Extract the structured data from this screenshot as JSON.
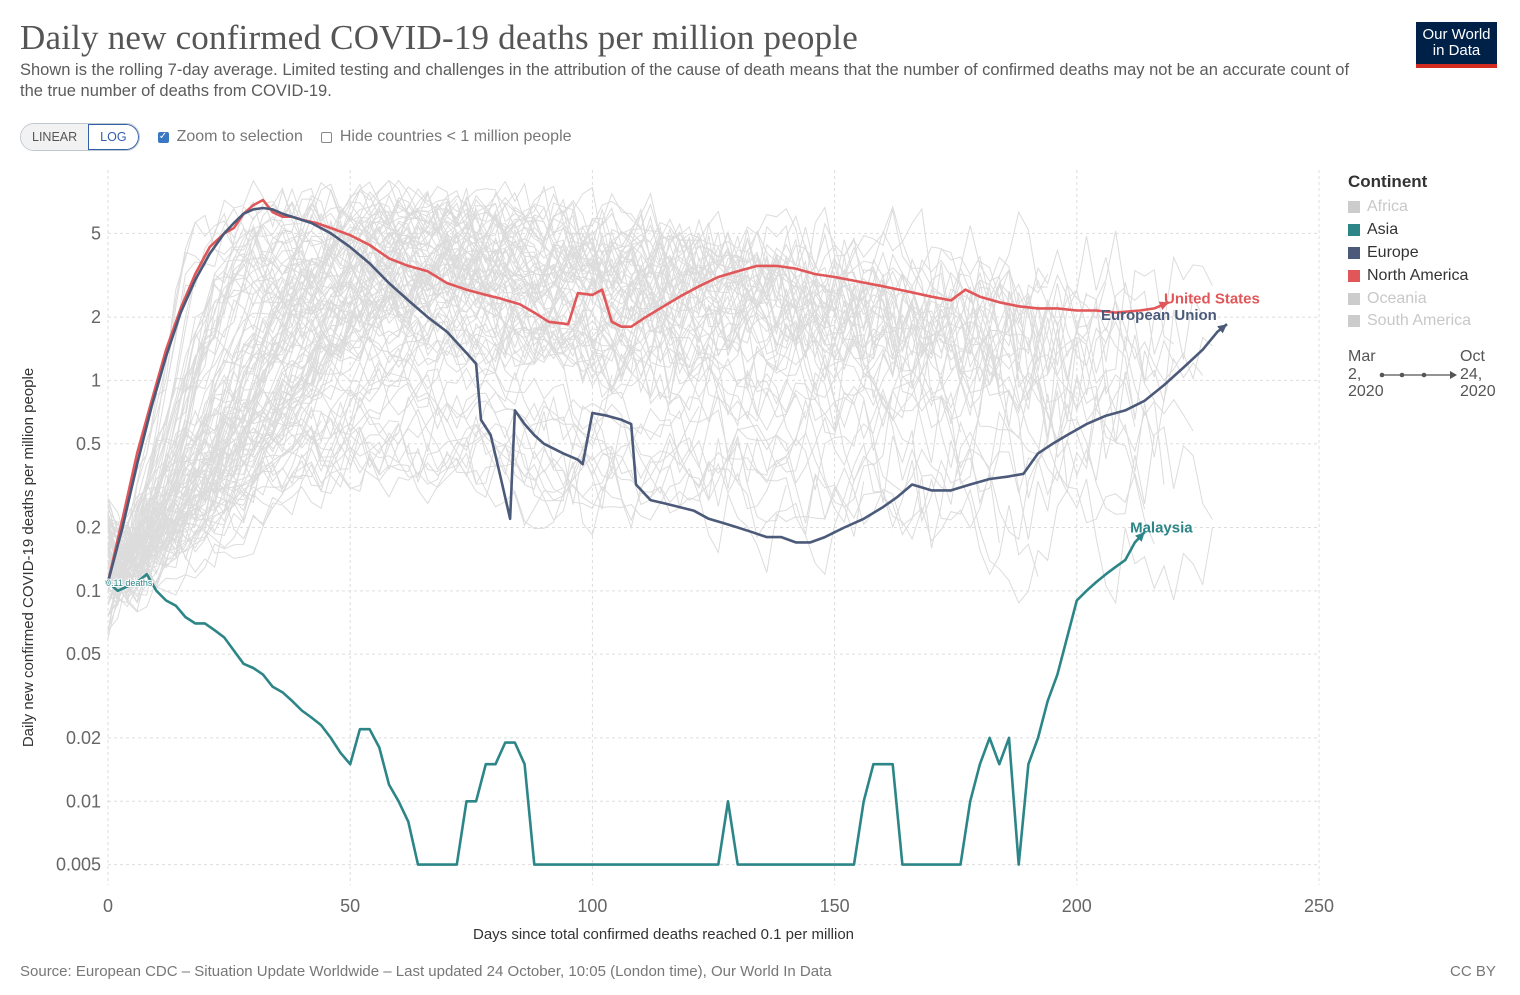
{
  "header": {
    "title": "Daily new confirmed COVID-19 deaths per million people",
    "subtitle": "Shown is the rolling 7-day average. Limited testing and challenges in the attribution of the cause of death means that the number of confirmed deaths may not be an accurate count of the true number of deaths from COVID-19.",
    "logo_line1": "Our World",
    "logo_line2": "in Data"
  },
  "controls": {
    "linear_label": "LINEAR",
    "log_label": "LOG",
    "active_scale": "log",
    "zoom_label": "Zoom to selection",
    "zoom_checked": true,
    "hide_label": "Hide countries < 1 million people",
    "hide_checked": false
  },
  "legend": {
    "title": "Continent",
    "items": [
      {
        "label": "Africa",
        "color": "#cccccc",
        "active": false
      },
      {
        "label": "Asia",
        "color": "#2c8587",
        "active": true
      },
      {
        "label": "Europe",
        "color": "#4c5a7a",
        "active": true
      },
      {
        "label": "North America",
        "color": "#e15759",
        "active": true
      },
      {
        "label": "Oceania",
        "color": "#cccccc",
        "active": false
      },
      {
        "label": "South America",
        "color": "#cccccc",
        "active": false
      }
    ]
  },
  "timeline": {
    "start_month": "Mar",
    "start_day": "2,",
    "start_year": "2020",
    "end_month": "Oct",
    "end_day": "24,",
    "end_year": "2020"
  },
  "footer": {
    "source": "Source: European CDC – Situation Update Worldwide – Last updated 24 October, 10:05 (London time), Our World In Data",
    "license": "CC BY"
  },
  "chart_data": {
    "type": "line",
    "title": "Daily new confirmed COVID-19 deaths per million people",
    "xlabel": "Days since total confirmed deaths reached 0.1 per million",
    "ylabel": "Daily new confirmed COVID-19 deaths per million people",
    "yscale": "log",
    "xlim": [
      0,
      250
    ],
    "ylim": [
      0.004,
      10
    ],
    "x_ticks": [
      0,
      50,
      100,
      150,
      200,
      250
    ],
    "y_ticks": [
      0.005,
      0.01,
      0.02,
      0.05,
      0.1,
      0.2,
      0.5,
      1,
      2,
      5
    ],
    "y_tick_labels": [
      "0.005",
      "0.01",
      "0.02",
      "0.05",
      "0.1",
      "0.2",
      "0.5",
      "1",
      "2",
      "5"
    ],
    "start_annotation": "0.11 deaths",
    "background_series_color": "#dcdcdc",
    "series": [
      {
        "name": "United States",
        "color": "#e15759",
        "label_color": "#e15759",
        "points": [
          [
            0,
            0.11
          ],
          [
            3,
            0.22
          ],
          [
            6,
            0.45
          ],
          [
            9,
            0.8
          ],
          [
            12,
            1.4
          ],
          [
            15,
            2.2
          ],
          [
            18,
            3.2
          ],
          [
            21,
            4.3
          ],
          [
            24,
            5.0
          ],
          [
            26,
            5.3
          ],
          [
            28,
            6.2
          ],
          [
            30,
            6.8
          ],
          [
            32,
            7.2
          ],
          [
            34,
            6.3
          ],
          [
            36,
            6.0
          ],
          [
            38,
            6.0
          ],
          [
            40,
            5.8
          ],
          [
            43,
            5.6
          ],
          [
            46,
            5.3
          ],
          [
            50,
            4.9
          ],
          [
            54,
            4.4
          ],
          [
            58,
            3.8
          ],
          [
            62,
            3.5
          ],
          [
            66,
            3.3
          ],
          [
            70,
            2.9
          ],
          [
            74,
            2.7
          ],
          [
            78,
            2.55
          ],
          [
            81,
            2.45
          ],
          [
            85,
            2.3
          ],
          [
            88,
            2.1
          ],
          [
            91,
            1.9
          ],
          [
            95,
            1.85
          ],
          [
            97,
            2.6
          ],
          [
            100,
            2.55
          ],
          [
            102,
            2.7
          ],
          [
            104,
            1.9
          ],
          [
            106,
            1.8
          ],
          [
            108,
            1.8
          ],
          [
            111,
            2.0
          ],
          [
            114,
            2.2
          ],
          [
            118,
            2.5
          ],
          [
            122,
            2.8
          ],
          [
            126,
            3.1
          ],
          [
            130,
            3.3
          ],
          [
            134,
            3.5
          ],
          [
            138,
            3.5
          ],
          [
            142,
            3.4
          ],
          [
            146,
            3.2
          ],
          [
            150,
            3.1
          ],
          [
            155,
            2.95
          ],
          [
            160,
            2.8
          ],
          [
            165,
            2.65
          ],
          [
            170,
            2.5
          ],
          [
            174,
            2.4
          ],
          [
            177,
            2.7
          ],
          [
            180,
            2.5
          ],
          [
            184,
            2.35
          ],
          [
            188,
            2.25
          ],
          [
            192,
            2.2
          ],
          [
            196,
            2.2
          ],
          [
            200,
            2.15
          ],
          [
            204,
            2.15
          ],
          [
            208,
            2.1
          ],
          [
            213,
            2.15
          ],
          [
            216,
            2.2
          ],
          [
            219,
            2.35
          ]
        ],
        "label": "United States",
        "label_x": 218,
        "label_y": 2.45
      },
      {
        "name": "European Union",
        "color": "#4c5a7a",
        "label_color": "#4c5a7a",
        "points": [
          [
            0,
            0.11
          ],
          [
            3,
            0.2
          ],
          [
            6,
            0.4
          ],
          [
            9,
            0.75
          ],
          [
            12,
            1.3
          ],
          [
            15,
            2.1
          ],
          [
            18,
            3.0
          ],
          [
            21,
            4.0
          ],
          [
            24,
            5.0
          ],
          [
            26,
            5.6
          ],
          [
            28,
            6.2
          ],
          [
            30,
            6.5
          ],
          [
            32,
            6.6
          ],
          [
            34,
            6.5
          ],
          [
            36,
            6.2
          ],
          [
            38,
            6.0
          ],
          [
            42,
            5.6
          ],
          [
            46,
            5.0
          ],
          [
            50,
            4.3
          ],
          [
            54,
            3.6
          ],
          [
            58,
            2.9
          ],
          [
            62,
            2.4
          ],
          [
            66,
            2.0
          ],
          [
            70,
            1.7
          ],
          [
            74,
            1.35
          ],
          [
            76,
            1.2
          ],
          [
            77,
            0.65
          ],
          [
            79,
            0.55
          ],
          [
            81,
            0.35
          ],
          [
            83,
            0.22
          ],
          [
            84,
            0.72
          ],
          [
            86,
            0.62
          ],
          [
            88,
            0.55
          ],
          [
            90,
            0.5
          ],
          [
            94,
            0.45
          ],
          [
            97,
            0.42
          ],
          [
            98,
            0.4
          ],
          [
            100,
            0.7
          ],
          [
            103,
            0.68
          ],
          [
            106,
            0.65
          ],
          [
            108,
            0.62
          ],
          [
            109,
            0.32
          ],
          [
            112,
            0.27
          ],
          [
            115,
            0.26
          ],
          [
            118,
            0.25
          ],
          [
            121,
            0.24
          ],
          [
            124,
            0.22
          ],
          [
            127,
            0.21
          ],
          [
            130,
            0.2
          ],
          [
            133,
            0.19
          ],
          [
            136,
            0.18
          ],
          [
            139,
            0.18
          ],
          [
            142,
            0.17
          ],
          [
            145,
            0.17
          ],
          [
            148,
            0.18
          ],
          [
            152,
            0.2
          ],
          [
            156,
            0.22
          ],
          [
            160,
            0.25
          ],
          [
            163,
            0.28
          ],
          [
            166,
            0.32
          ],
          [
            170,
            0.3
          ],
          [
            174,
            0.3
          ],
          [
            178,
            0.32
          ],
          [
            182,
            0.34
          ],
          [
            186,
            0.35
          ],
          [
            189,
            0.36
          ],
          [
            192,
            0.45
          ],
          [
            195,
            0.5
          ],
          [
            198,
            0.55
          ],
          [
            202,
            0.62
          ],
          [
            206,
            0.68
          ],
          [
            210,
            0.72
          ],
          [
            214,
            0.8
          ],
          [
            218,
            0.95
          ],
          [
            222,
            1.15
          ],
          [
            226,
            1.4
          ],
          [
            229,
            1.7
          ],
          [
            231,
            1.85
          ]
        ],
        "label": "European Union",
        "label_x": 205,
        "label_y": 2.05
      },
      {
        "name": "Malaysia",
        "color": "#2c8587",
        "label_color": "#2c8587",
        "points": [
          [
            0,
            0.11
          ],
          [
            2,
            0.1
          ],
          [
            4,
            0.105
          ],
          [
            6,
            0.11
          ],
          [
            8,
            0.12
          ],
          [
            10,
            0.1
          ],
          [
            12,
            0.09
          ],
          [
            14,
            0.085
          ],
          [
            16,
            0.075
          ],
          [
            18,
            0.07
          ],
          [
            20,
            0.07
          ],
          [
            22,
            0.065
          ],
          [
            24,
            0.06
          ],
          [
            26,
            0.052
          ],
          [
            28,
            0.045
          ],
          [
            30,
            0.043
          ],
          [
            32,
            0.04
          ],
          [
            34,
            0.035
          ],
          [
            36,
            0.033
          ],
          [
            38,
            0.03
          ],
          [
            40,
            0.027
          ],
          [
            42,
            0.025
          ],
          [
            44,
            0.023
          ],
          [
            46,
            0.02
          ],
          [
            48,
            0.017
          ],
          [
            50,
            0.015
          ],
          [
            52,
            0.022
          ],
          [
            54,
            0.022
          ],
          [
            56,
            0.018
          ],
          [
            58,
            0.012
          ],
          [
            60,
            0.01
          ],
          [
            62,
            0.008
          ],
          [
            64,
            0.005
          ],
          [
            66,
            0.005
          ],
          [
            68,
            0.005
          ],
          [
            70,
            0.005
          ],
          [
            72,
            0.005
          ],
          [
            74,
            0.01
          ],
          [
            76,
            0.01
          ],
          [
            78,
            0.015
          ],
          [
            80,
            0.015
          ],
          [
            82,
            0.019
          ],
          [
            84,
            0.019
          ],
          [
            86,
            0.015
          ],
          [
            88,
            0.005
          ],
          [
            90,
            0.005
          ],
          [
            92,
            0.005
          ],
          [
            94,
            0.005
          ],
          [
            96,
            0.005
          ],
          [
            98,
            0.005
          ],
          [
            100,
            0.005
          ],
          [
            102,
            0.005
          ],
          [
            104,
            0.005
          ],
          [
            106,
            0.005
          ],
          [
            108,
            0.005
          ],
          [
            110,
            0.005
          ],
          [
            112,
            0.005
          ],
          [
            114,
            0.005
          ],
          [
            116,
            0.005
          ],
          [
            118,
            0.005
          ],
          [
            120,
            0.005
          ],
          [
            122,
            0.005
          ],
          [
            124,
            0.005
          ],
          [
            126,
            0.005
          ],
          [
            128,
            0.01
          ],
          [
            130,
            0.005
          ],
          [
            132,
            0.005
          ],
          [
            134,
            0.005
          ],
          [
            136,
            0.005
          ],
          [
            138,
            0.005
          ],
          [
            140,
            0.005
          ],
          [
            142,
            0.005
          ],
          [
            144,
            0.005
          ],
          [
            146,
            0.005
          ],
          [
            148,
            0.005
          ],
          [
            150,
            0.005
          ],
          [
            152,
            0.005
          ],
          [
            154,
            0.005
          ],
          [
            156,
            0.01
          ],
          [
            158,
            0.015
          ],
          [
            160,
            0.015
          ],
          [
            162,
            0.015
          ],
          [
            164,
            0.005
          ],
          [
            166,
            0.005
          ],
          [
            168,
            0.005
          ],
          [
            170,
            0.005
          ],
          [
            172,
            0.005
          ],
          [
            174,
            0.005
          ],
          [
            176,
            0.005
          ],
          [
            178,
            0.01
          ],
          [
            180,
            0.015
          ],
          [
            182,
            0.02
          ],
          [
            184,
            0.015
          ],
          [
            186,
            0.02
          ],
          [
            188,
            0.005
          ],
          [
            190,
            0.015
          ],
          [
            192,
            0.02
          ],
          [
            194,
            0.03
          ],
          [
            196,
            0.04
          ],
          [
            198,
            0.06
          ],
          [
            200,
            0.09
          ],
          [
            202,
            0.1
          ],
          [
            204,
            0.11
          ],
          [
            206,
            0.12
          ],
          [
            208,
            0.13
          ],
          [
            210,
            0.14
          ],
          [
            212,
            0.17
          ],
          [
            214,
            0.19
          ]
        ],
        "label": "Malaysia",
        "label_x": 211,
        "label_y": 0.2
      }
    ]
  }
}
